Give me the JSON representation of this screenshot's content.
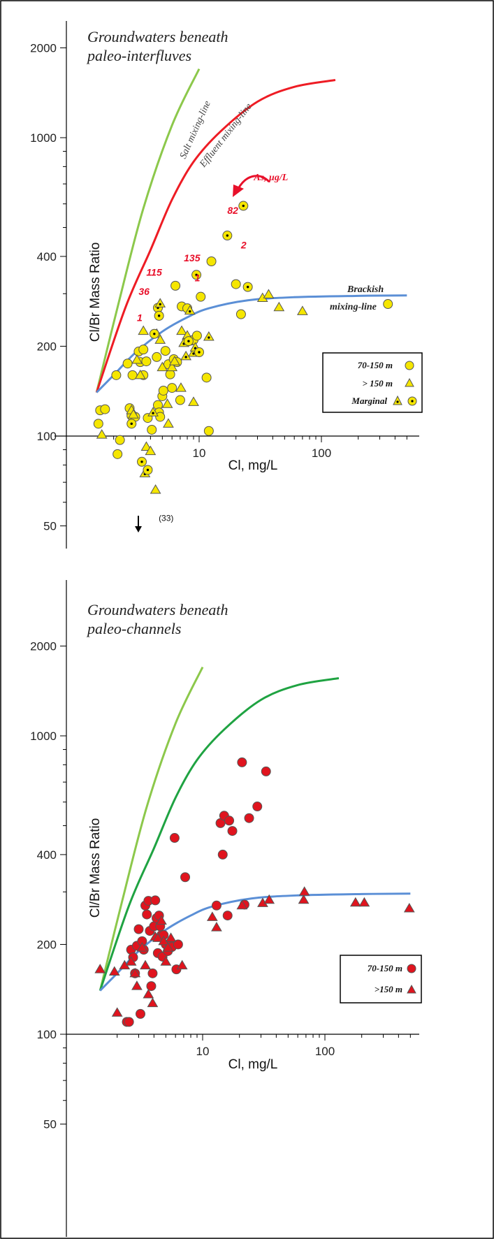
{
  "colors": {
    "salt_line": "#8cc84b",
    "effluent_line_top": "#ee1c24",
    "effluent_line_bottom": "#1fa342",
    "brackish_line": "#5b8fd6",
    "yellow_fill": "#f5e600",
    "red_fill": "#e0141e",
    "marker_edge": "#555555",
    "annotation_red": "#e8102a"
  },
  "chart_data": [
    {
      "type": "scatter",
      "title": "Groundwaters beneath",
      "subtitle": "paleo-interfluves",
      "xlabel": "Cl, mg/L",
      "ylabel": "Cl/Br Mass Ratio",
      "x_scale": "log",
      "y_scale": "log",
      "xlim": [
        1.3,
        500
      ],
      "ylim": [
        50,
        2500
      ],
      "x_ticks": [
        10,
        100
      ],
      "y_ticks": [
        50,
        100,
        200,
        400,
        1000,
        2000
      ],
      "lines": [
        {
          "name": "Salt mixing-line",
          "points": [
            [
              1.45,
              140
            ],
            [
              2.2,
              280
            ],
            [
              3.5,
              580
            ],
            [
              6,
              1100
            ],
            [
              10,
              1700
            ]
          ]
        },
        {
          "name": "Effluent mixing-line",
          "points": [
            [
              1.45,
              140
            ],
            [
              2.5,
              270
            ],
            [
              4,
              420
            ],
            [
              6,
              620
            ],
            [
              9,
              830
            ],
            [
              15,
              1050
            ],
            [
              30,
              1320
            ],
            [
              60,
              1480
            ],
            [
              130,
              1560
            ]
          ]
        },
        {
          "name": "Brackish mixing-line",
          "points": [
            [
              1.45,
              140
            ],
            [
              2,
              160
            ],
            [
              3,
              190
            ],
            [
              5,
              224
            ],
            [
              8,
              250
            ],
            [
              12,
              268
            ],
            [
              25,
              285
            ],
            [
              60,
              292
            ],
            [
              200,
              295
            ],
            [
              500,
              296
            ]
          ]
        }
      ],
      "line_labels": [
        "Salt mixing-line",
        "Effluent mixing-line",
        "Brackish",
        "mixing-line"
      ],
      "series": [
        {
          "name": "70-150 m",
          "marker": "circle",
          "points": [
            [
              1.5,
              110
            ],
            [
              1.55,
              122
            ],
            [
              1.7,
              123
            ],
            [
              2.1,
              160
            ],
            [
              2.25,
              97
            ],
            [
              2.15,
              87
            ],
            [
              2.6,
              175
            ],
            [
              2.7,
              124
            ],
            [
              2.8,
              117
            ],
            [
              2.85,
              160
            ],
            [
              3.0,
              116
            ],
            [
              3.2,
              192
            ],
            [
              3.3,
              177
            ],
            [
              3.5,
              195
            ],
            [
              3.7,
              178
            ],
            [
              3.5,
              160
            ],
            [
              3.8,
              115
            ],
            [
              4.1,
              105
            ],
            [
              4.5,
              184
            ],
            [
              4.6,
              127
            ],
            [
              4.7,
              120
            ],
            [
              4.8,
              116
            ],
            [
              5.0,
              136
            ],
            [
              5.1,
              142
            ],
            [
              5.3,
              193
            ],
            [
              5.6,
              174
            ],
            [
              5.8,
              161
            ],
            [
              6.0,
              145
            ],
            [
              6.2,
              181
            ],
            [
              6.4,
              319
            ],
            [
              6.6,
              177
            ],
            [
              7.0,
              132
            ],
            [
              7.2,
              272
            ],
            [
              8.0,
              268
            ],
            [
              8.6,
              209
            ],
            [
              9.0,
              210
            ],
            [
              9.6,
              217
            ],
            [
              10.3,
              293
            ],
            [
              11.5,
              157
            ],
            [
              12.0,
              104
            ],
            [
              12.6,
              385
            ],
            [
              20.0,
              323
            ],
            [
              22.0,
              256
            ],
            [
              350.0,
              277
            ]
          ]
        },
        {
          "name": "> 150 m",
          "marker": "triangle",
          "points": [
            [
              1.6,
              101
            ],
            [
              2.8,
              122
            ],
            [
              2.9,
              118
            ],
            [
              3.1,
              180
            ],
            [
              3.3,
              160
            ],
            [
              3.5,
              225
            ],
            [
              3.7,
              92
            ],
            [
              4.0,
              89
            ],
            [
              4.4,
              66
            ],
            [
              4.5,
              220
            ],
            [
              4.8,
              210
            ],
            [
              5.0,
              170
            ],
            [
              5.5,
              128
            ],
            [
              5.6,
              110
            ],
            [
              6.0,
              170
            ],
            [
              6.3,
              178
            ],
            [
              7.1,
              145
            ],
            [
              7.2,
              225
            ],
            [
              8.0,
              217
            ],
            [
              9.0,
              130
            ],
            [
              33.0,
              290
            ],
            [
              37.0,
              298
            ],
            [
              45.0,
              270
            ],
            [
              70.0,
              262
            ]
          ]
        },
        {
          "name": "Marginal",
          "marker": "dotted",
          "points": [
            [
              2.8,
              110
            ],
            [
              3.4,
              82
            ],
            [
              3.6,
              75
            ],
            [
              3.8,
              77
            ],
            [
              4.2,
              120
            ],
            [
              4.3,
              220
            ],
            [
              4.6,
              269
            ],
            [
              4.7,
              253
            ],
            [
              4.8,
              278
            ],
            [
              7.5,
              205
            ],
            [
              7.8,
              185
            ],
            [
              8.2,
              208
            ],
            [
              8.4,
              263
            ],
            [
              9.0,
              190
            ],
            [
              9.3,
              198
            ],
            [
              9.5,
              347
            ],
            [
              10.0,
              191
            ],
            [
              12.0,
              215
            ],
            [
              17.0,
              470
            ],
            [
              23.0,
              591
            ],
            [
              25.0,
              316
            ]
          ]
        }
      ],
      "annotations": [
        {
          "text": "As, μg/L",
          "x": 28,
          "y": 720
        },
        {
          "text": "82",
          "x": 17,
          "y": 555
        },
        {
          "text": "2",
          "x": 22,
          "y": 425
        },
        {
          "text": "135",
          "x": 7.5,
          "y": 385
        },
        {
          "text": "1",
          "x": 9.2,
          "y": 330
        },
        {
          "text": "115",
          "x": 3.7,
          "y": 345
        },
        {
          "text": "36",
          "x": 3.2,
          "y": 297
        },
        {
          "text": "1",
          "x": 3.1,
          "y": 243
        },
        {
          "text": "(33)",
          "x": 4.2,
          "y": 52
        }
      ],
      "legend": {
        "placement": "bottom-right",
        "entries": [
          "70-150 m",
          "> 150 m",
          "Marginal"
        ]
      }
    },
    {
      "type": "scatter",
      "title": "Groundwaters beneath",
      "subtitle": "paleo-channels",
      "xlabel": "Cl, mg/L",
      "ylabel": "Cl/Br Mass Ratio",
      "x_scale": "log",
      "y_scale": "log",
      "xlim": [
        1.3,
        500
      ],
      "ylim": [
        50,
        2500
      ],
      "x_ticks": [
        10,
        100
      ],
      "y_ticks": [
        50,
        100,
        200,
        400,
        1000,
        2000
      ],
      "lines": [
        {
          "name": "Salt mixing-line",
          "points": [
            [
              1.45,
              140
            ],
            [
              2.2,
              280
            ],
            [
              3.5,
              580
            ],
            [
              6,
              1100
            ],
            [
              10,
              1700
            ]
          ]
        },
        {
          "name": "Effluent mixing-line",
          "points": [
            [
              1.45,
              140
            ],
            [
              2.5,
              270
            ],
            [
              4,
              420
            ],
            [
              6,
              620
            ],
            [
              9,
              830
            ],
            [
              15,
              1050
            ],
            [
              30,
              1320
            ],
            [
              60,
              1480
            ],
            [
              130,
              1560
            ]
          ]
        },
        {
          "name": "Brackish mixing-line",
          "points": [
            [
              1.45,
              140
            ],
            [
              2,
              160
            ],
            [
              3,
              190
            ],
            [
              5,
              224
            ],
            [
              8,
              250
            ],
            [
              12,
              268
            ],
            [
              25,
              285
            ],
            [
              60,
              292
            ],
            [
              200,
              295
            ],
            [
              500,
              296
            ]
          ]
        }
      ],
      "series": [
        {
          "name": "70-150 m",
          "marker": "circle",
          "points": [
            [
              2.4,
              110
            ],
            [
              2.5,
              110
            ],
            [
              2.6,
              192
            ],
            [
              2.7,
              181
            ],
            [
              2.8,
              160
            ],
            [
              2.9,
              198
            ],
            [
              3.0,
              225
            ],
            [
              3.1,
              117
            ],
            [
              3.2,
              205
            ],
            [
              3.3,
              192
            ],
            [
              3.4,
              270
            ],
            [
              3.5,
              252
            ],
            [
              3.6,
              280
            ],
            [
              3.7,
              222
            ],
            [
              3.8,
              145
            ],
            [
              3.9,
              160
            ],
            [
              4.0,
              230
            ],
            [
              4.1,
              281
            ],
            [
              4.2,
              245
            ],
            [
              4.3,
              187
            ],
            [
              4.4,
              250
            ],
            [
              4.5,
              230
            ],
            [
              4.6,
              215
            ],
            [
              4.7,
              182
            ],
            [
              4.8,
              215
            ],
            [
              5.0,
              200
            ],
            [
              5.2,
              190
            ],
            [
              5.4,
              200
            ],
            [
              5.6,
              196
            ],
            [
              5.9,
              455
            ],
            [
              6.1,
              165
            ],
            [
              6.3,
              200
            ],
            [
              7.2,
              336
            ],
            [
              14.0,
              510
            ],
            [
              14.6,
              400
            ],
            [
              15.0,
              540
            ],
            [
              16.5,
              520
            ],
            [
              17.5,
              480
            ],
            [
              21.0,
              815
            ],
            [
              22.0,
              272
            ],
            [
              24.0,
              530
            ],
            [
              28.0,
              580
            ],
            [
              33.0,
              760
            ],
            [
              13.0,
              270
            ],
            [
              16.0,
              250
            ]
          ]
        },
        {
          "name": ">150 m",
          "marker": "triangle",
          "points": [
            [
              1.45,
              165
            ],
            [
              1.9,
              162
            ],
            [
              2.0,
              118
            ],
            [
              2.3,
              170
            ],
            [
              2.6,
              175
            ],
            [
              2.8,
              160
            ],
            [
              2.9,
              145
            ],
            [
              3.2,
              195
            ],
            [
              3.4,
              170
            ],
            [
              3.6,
              136
            ],
            [
              3.9,
              127
            ],
            [
              4.1,
              212
            ],
            [
              4.3,
              210
            ],
            [
              4.6,
              240
            ],
            [
              4.8,
              205
            ],
            [
              5.0,
              175
            ],
            [
              5.2,
              195
            ],
            [
              5.5,
              210
            ],
            [
              6.8,
              170
            ],
            [
              12.0,
              247
            ],
            [
              13.0,
              228
            ],
            [
              21.0,
              270
            ],
            [
              31.0,
              275
            ],
            [
              35.0,
              282
            ],
            [
              67.0,
              282
            ],
            [
              68.0,
              300
            ],
            [
              178.0,
              276
            ],
            [
              210.0,
              276
            ],
            [
              490.0,
              264
            ]
          ]
        }
      ],
      "legend": {
        "placement": "bottom-right",
        "entries": [
          "70-150 m",
          ">150 m"
        ]
      }
    }
  ]
}
